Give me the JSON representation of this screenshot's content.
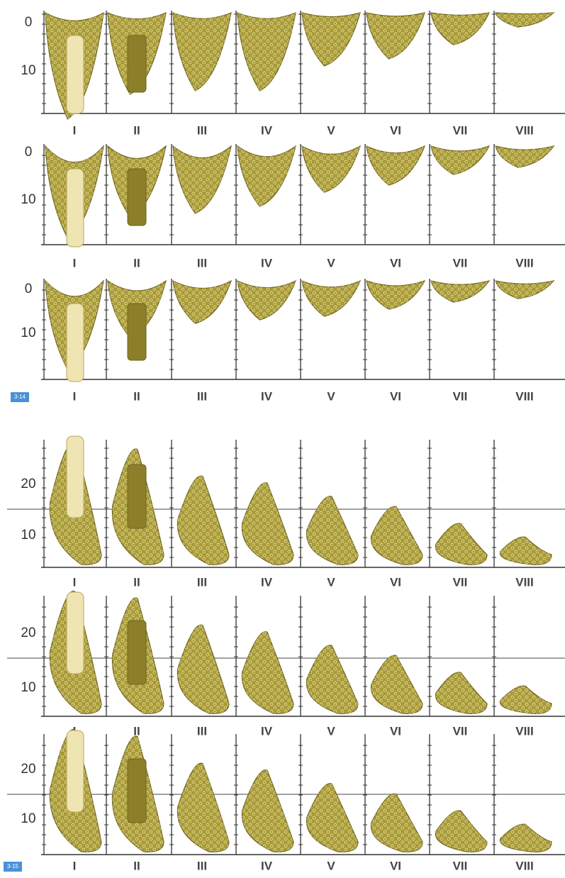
{
  "columns": [
    "I",
    "II",
    "III",
    "IV",
    "V",
    "VI",
    "VII",
    "VIII"
  ],
  "panels": [
    {
      "y_labels": [
        "0",
        "10"
      ]
    },
    {
      "y_labels": [
        "0",
        "10"
      ]
    },
    {
      "y_labels": [
        "0",
        "10"
      ]
    },
    {
      "y_labels": [
        "20",
        "10"
      ]
    },
    {
      "y_labels": [
        "20",
        "10"
      ]
    },
    {
      "y_labels": [
        "20",
        "10"
      ]
    }
  ],
  "badges": [
    "3-14",
    "3-15"
  ]
}
